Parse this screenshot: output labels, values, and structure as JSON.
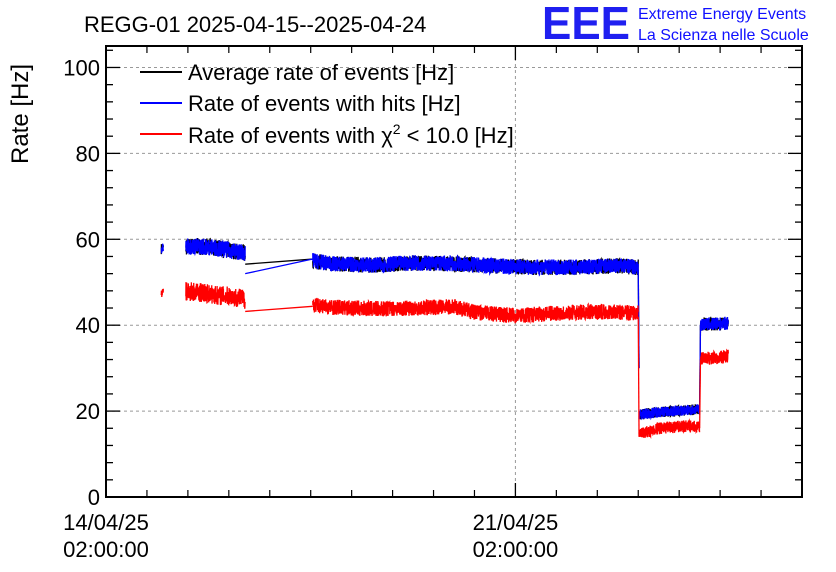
{
  "chart_data": {
    "type": "line",
    "title": "REGG-01 2025-04-15--2025-04-24",
    "ylabel": "Rate [Hz]",
    "xlabel": "",
    "ylim": [
      0,
      105
    ],
    "xlim_days": [
      0,
      17
    ],
    "y_ticks": [
      0,
      20,
      40,
      60,
      80,
      100
    ],
    "x_ticks": [
      {
        "day": 0,
        "line1": "14/04/25",
        "line2": "02:00:00"
      },
      {
        "day": 10,
        "line1": "21/04/25",
        "line2": "02:00:00"
      }
    ],
    "grid": true,
    "legend_position": "top-left",
    "legend_superscript": "2",
    "legend_tail": " < 10.0 [Hz]",
    "series": [
      {
        "name": "Average rate of events [Hz]",
        "color": "#000000",
        "segments": [
          {
            "x": [
              1.35,
              1.4
            ],
            "y": [
              57.8,
              57.8
            ],
            "noise": 0.9
          },
          {
            "x": [
              1.95,
              2.1,
              2.4,
              2.7,
              3.0,
              3.3,
              3.4
            ],
            "y": [
              58.2,
              58.4,
              58.3,
              58.0,
              57.5,
              57.0,
              56.8
            ],
            "noise": 1.4
          },
          {
            "x": [
              3.4,
              5.05
            ],
            "y": [
              54.2,
              55.4
            ],
            "noise": 0
          },
          {
            "x": [
              5.05,
              5.5,
              6.5,
              7.5,
              8.5,
              9.5,
              10.5,
              11.5,
              12.5,
              13.0
            ],
            "y": [
              55.0,
              54.3,
              54.0,
              54.5,
              54.3,
              53.8,
              53.5,
              53.5,
              53.8,
              53.5
            ],
            "noise": 1.3
          },
          {
            "x": [
              13.0,
              13.02
            ],
            "y": [
              53.0,
              30.0
            ],
            "noise": 0
          },
          {
            "x": [
              13.02,
              13.5,
              14.2,
              14.5
            ],
            "y": [
              19.2,
              19.8,
              20.2,
              20.4
            ],
            "noise": 0.9
          },
          {
            "x": [
              14.5,
              14.52
            ],
            "y": [
              20.4,
              40.0
            ],
            "noise": 0
          },
          {
            "x": [
              14.52,
              15.0,
              15.2
            ],
            "y": [
              40.2,
              40.3,
              40.5
            ],
            "noise": 1.1
          }
        ]
      },
      {
        "name": "Rate of events with hits [Hz]",
        "color": "#0000ff",
        "segments": [
          {
            "x": [
              1.35,
              1.4
            ],
            "y": [
              57.8,
              57.8
            ],
            "noise": 0.9
          },
          {
            "x": [
              1.95,
              2.1,
              2.4,
              2.7,
              3.0,
              3.3,
              3.4
            ],
            "y": [
              58.2,
              58.4,
              58.3,
              58.0,
              57.5,
              57.0,
              56.8
            ],
            "noise": 1.4
          },
          {
            "x": [
              3.4,
              5.05
            ],
            "y": [
              52.0,
              55.4
            ],
            "noise": 0
          },
          {
            "x": [
              5.05,
              5.5,
              6.5,
              7.5,
              8.5,
              9.5,
              10.5,
              11.5,
              12.5,
              13.0
            ],
            "y": [
              55.0,
              54.3,
              54.0,
              54.5,
              54.3,
              53.8,
              53.5,
              53.5,
              53.8,
              53.5
            ],
            "noise": 1.3
          },
          {
            "x": [
              13.0,
              13.02
            ],
            "y": [
              53.0,
              30.0
            ],
            "noise": 0
          },
          {
            "x": [
              13.02,
              13.5,
              14.2,
              14.5
            ],
            "y": [
              19.2,
              19.8,
              20.2,
              20.4
            ],
            "noise": 0.9
          },
          {
            "x": [
              14.5,
              14.52
            ],
            "y": [
              20.4,
              40.0
            ],
            "noise": 0
          },
          {
            "x": [
              14.52,
              15.0,
              15.2
            ],
            "y": [
              40.2,
              40.3,
              40.5
            ],
            "noise": 1.1
          }
        ]
      },
      {
        "name": "Rate of events with χ",
        "color": "#ff0000",
        "segments": [
          {
            "x": [
              1.35,
              1.4
            ],
            "y": [
              47.8,
              47.8
            ],
            "noise": 0.9
          },
          {
            "x": [
              1.95,
              2.1,
              2.4,
              2.7,
              3.0,
              3.3,
              3.4
            ],
            "y": [
              47.8,
              47.8,
              47.5,
              47.0,
              46.8,
              46.3,
              46.0
            ],
            "noise": 1.6
          },
          {
            "x": [
              3.4,
              5.05
            ],
            "y": [
              43.2,
              44.4
            ],
            "noise": 0
          },
          {
            "x": [
              5.05,
              5.5,
              6.5,
              7.5,
              8.5,
              9.0,
              10.0,
              11.0,
              12.0,
              13.0
            ],
            "y": [
              44.8,
              44.2,
              43.8,
              44.0,
              44.3,
              43.0,
              42.2,
              42.8,
              43.2,
              42.8
            ],
            "noise": 1.3
          },
          {
            "x": [
              13.0,
              13.02
            ],
            "y": [
              42.0,
              14.0
            ],
            "noise": 0
          },
          {
            "x": [
              13.02,
              13.5,
              14.2,
              14.5
            ],
            "y": [
              14.5,
              16.0,
              16.5,
              16.2
            ],
            "noise": 1.0
          },
          {
            "x": [
              14.5,
              14.52
            ],
            "y": [
              16.0,
              32.0
            ],
            "noise": 0
          },
          {
            "x": [
              14.52,
              15.0,
              15.2
            ],
            "y": [
              32.2,
              32.5,
              32.8
            ],
            "noise": 1.1
          }
        ]
      }
    ]
  },
  "logo": {
    "mark": "EEE",
    "line1": "Extreme Energy Events",
    "line2": "La Scienza nelle Scuole"
  }
}
